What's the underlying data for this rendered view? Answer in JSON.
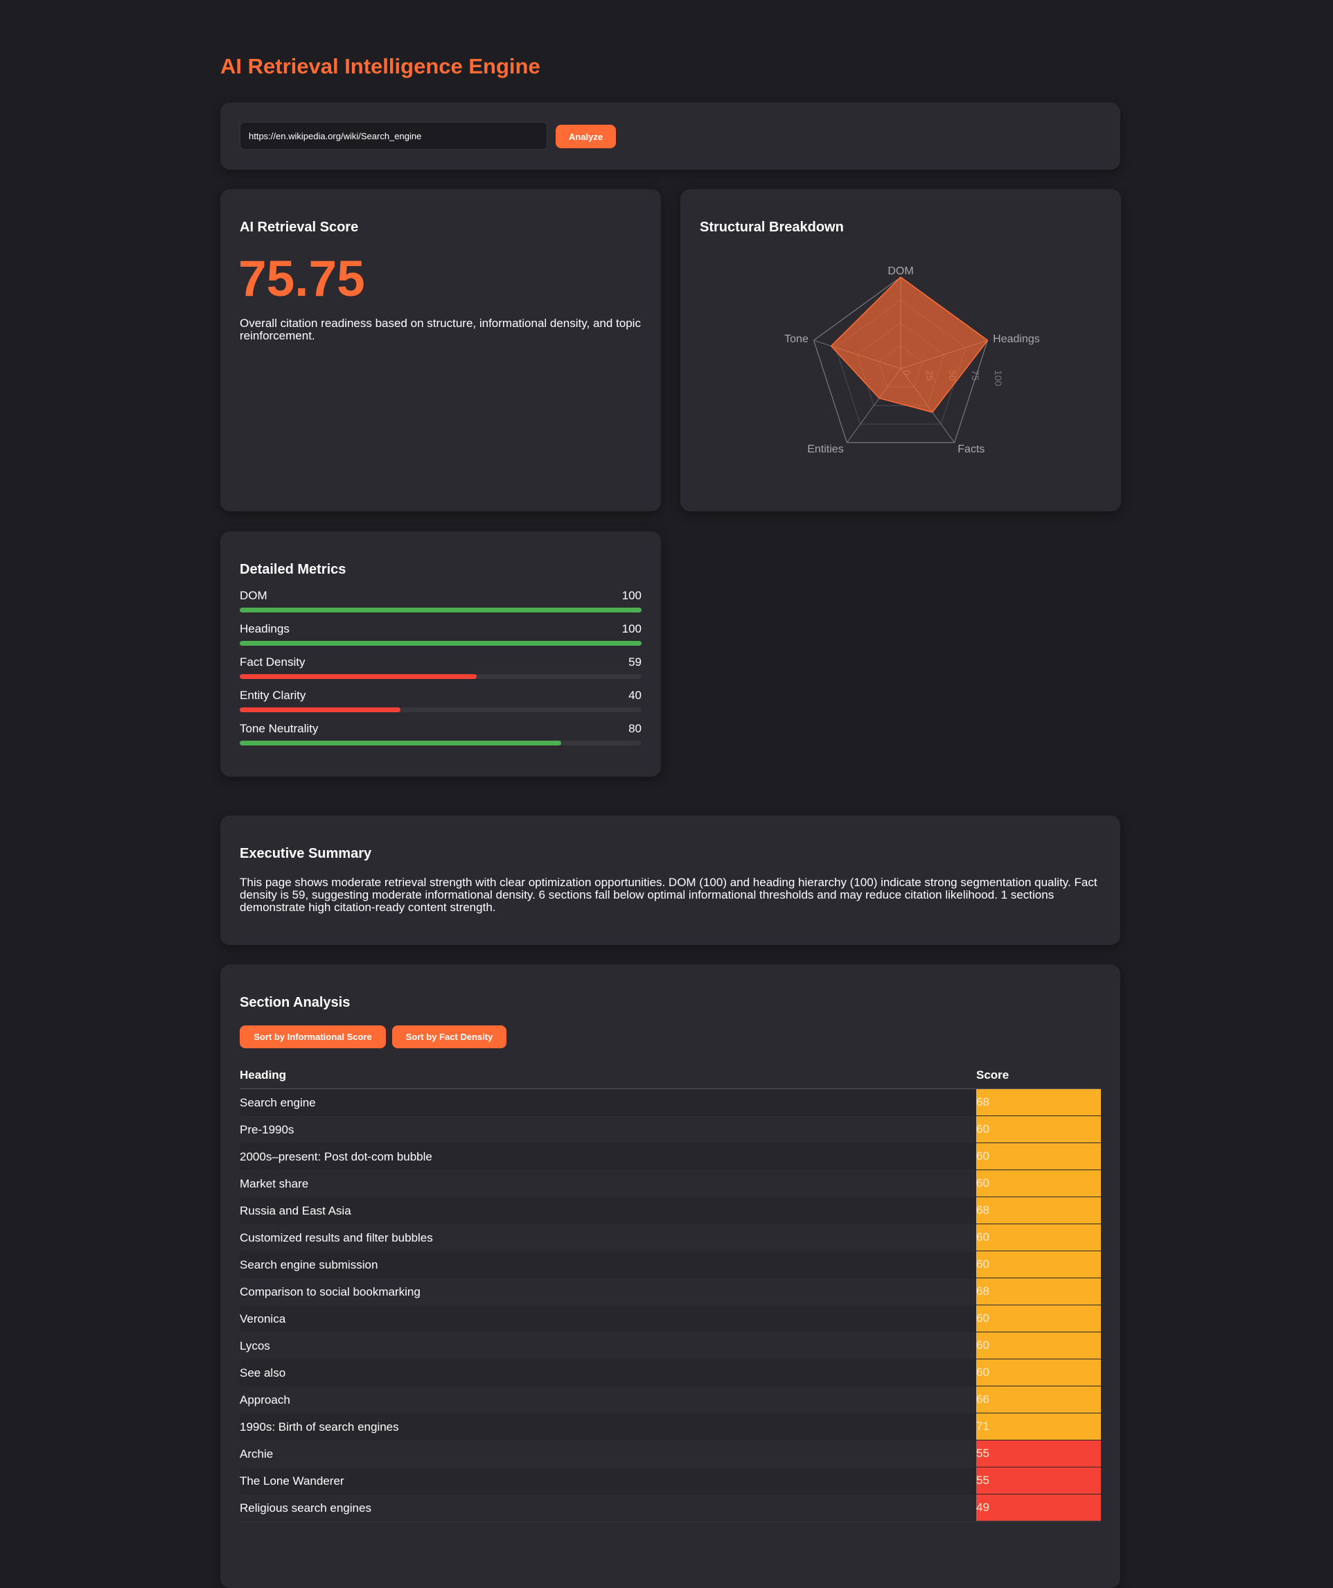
{
  "header": {
    "title": "AI Retrieval Intelligence Engine"
  },
  "input": {
    "url": "https://en.wikipedia.org/wiki/Search_engine",
    "button": "Analyze"
  },
  "score_card": {
    "title": "AI Retrieval Score",
    "score": "75.75",
    "description": "Overall citation readiness based on structure, informational density, and topic reinforcement."
  },
  "radar": {
    "type": "radar",
    "title": "Structural Breakdown",
    "labels": [
      "DOM",
      "Headings",
      "Facts",
      "Entities",
      "Tone"
    ],
    "values": [
      100,
      100,
      59,
      40,
      80
    ],
    "rlim": [
      0,
      100
    ],
    "rticks": [
      0,
      25,
      50,
      75,
      100
    ],
    "color": "#ff6b35"
  },
  "metrics": {
    "title": "Detailed Metrics",
    "xlim": [
      0,
      100
    ],
    "items": [
      {
        "name": "DOM",
        "value": 100,
        "color": "#4caf50"
      },
      {
        "name": "Headings",
        "value": 100,
        "color": "#4caf50"
      },
      {
        "name": "Fact Density",
        "value": 59,
        "color": "#f44336"
      },
      {
        "name": "Entity Clarity",
        "value": 40,
        "color": "#f44336"
      },
      {
        "name": "Tone Neutrality",
        "value": 80,
        "color": "#4caf50"
      }
    ]
  },
  "summary": {
    "title": "Executive Summary",
    "text": "This page shows moderate retrieval strength with clear optimization opportunities. DOM (100) and heading hierarchy (100) indicate strong segmentation quality. Fact density is 59, suggesting moderate informational density. 6 sections fall below optimal informational thresholds and may reduce citation likelihood. 1 sections demonstrate high citation-ready content strength."
  },
  "sections": {
    "title": "Section Analysis",
    "buttons": [
      "Sort by Informational Score",
      "Sort by Fact Density"
    ],
    "table": {
      "columns": [
        "Heading",
        "Score"
      ],
      "rows": [
        {
          "heading": "Search engine",
          "score": 68,
          "color": "#fbaf24"
        },
        {
          "heading": "Pre-1990s",
          "score": 60,
          "color": "#fbaf24"
        },
        {
          "heading": "2000s–present: Post dot-com bubble",
          "score": 60,
          "color": "#fbaf24"
        },
        {
          "heading": "Market share",
          "score": 60,
          "color": "#fbaf24"
        },
        {
          "heading": "Russia and East Asia",
          "score": 68,
          "color": "#fbaf24"
        },
        {
          "heading": "Customized results and filter bubbles",
          "score": 60,
          "color": "#fbaf24"
        },
        {
          "heading": "Search engine submission",
          "score": 60,
          "color": "#fbaf24"
        },
        {
          "heading": "Comparison to social bookmarking",
          "score": 68,
          "color": "#fbaf24"
        },
        {
          "heading": "Veronica",
          "score": 60,
          "color": "#fbaf24"
        },
        {
          "heading": "Lycos",
          "score": 60,
          "color": "#fbaf24"
        },
        {
          "heading": "See also",
          "score": 60,
          "color": "#fbaf24"
        },
        {
          "heading": "Approach",
          "score": 66,
          "color": "#fbaf24"
        },
        {
          "heading": "1990s: Birth of search engines",
          "score": 71,
          "color": "#fbaf24"
        },
        {
          "heading": "Archie",
          "score": 55,
          "color": "#f44336"
        },
        {
          "heading": "The Lone Wanderer",
          "score": 55,
          "color": "#f44336"
        },
        {
          "heading": "Religious search engines",
          "score": 49,
          "color": "#f44336"
        }
      ]
    }
  }
}
